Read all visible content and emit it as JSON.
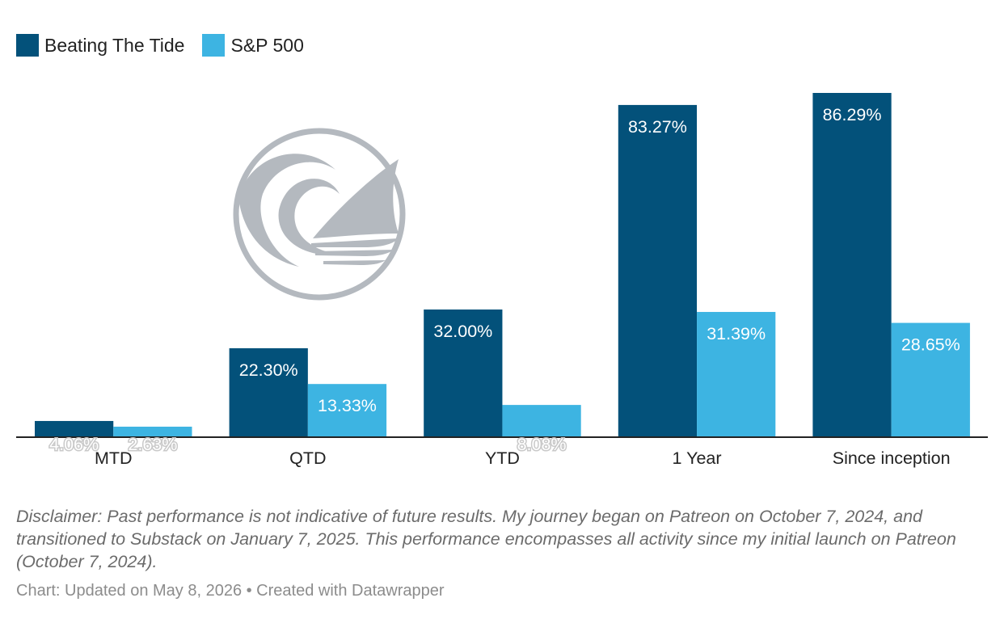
{
  "legend": {
    "items": [
      {
        "label": "Beating The Tide",
        "color": "#03517a"
      },
      {
        "label": "S&P 500",
        "color": "#3db4e2"
      }
    ]
  },
  "chart_data": {
    "type": "bar",
    "title": "",
    "xlabel": "",
    "ylabel": "",
    "categories": [
      "MTD",
      "QTD",
      "YTD",
      "1 Year",
      "Since inception"
    ],
    "series": [
      {
        "name": "Beating The Tide",
        "color": "#03517a",
        "values": [
          4.06,
          22.3,
          32.0,
          83.27,
          86.29
        ],
        "labels": [
          "4.06%",
          "22.30%",
          "32.00%",
          "83.27%",
          "86.29%"
        ]
      },
      {
        "name": "S&P 500",
        "color": "#3db4e2",
        "values": [
          2.63,
          13.33,
          8.08,
          31.39,
          28.65
        ],
        "labels": [
          "2.63%",
          "13.33%",
          "8.08%",
          "31.39%",
          "28.65%"
        ]
      }
    ],
    "ylim": [
      0,
      90
    ],
    "grid": false,
    "legend_position": "top-left"
  },
  "footer": {
    "disclaimer": "Disclaimer: Past performance is not indicative of future results. My journey began on Patreon on October 7, 2024, and transitioned to Substack on January 7, 2025. This performance encompasses all activity since my initial launch on Patreon (October 7, 2024).",
    "credit": "Chart: Updated on May 8, 2026 • Created with Datawrapper"
  }
}
